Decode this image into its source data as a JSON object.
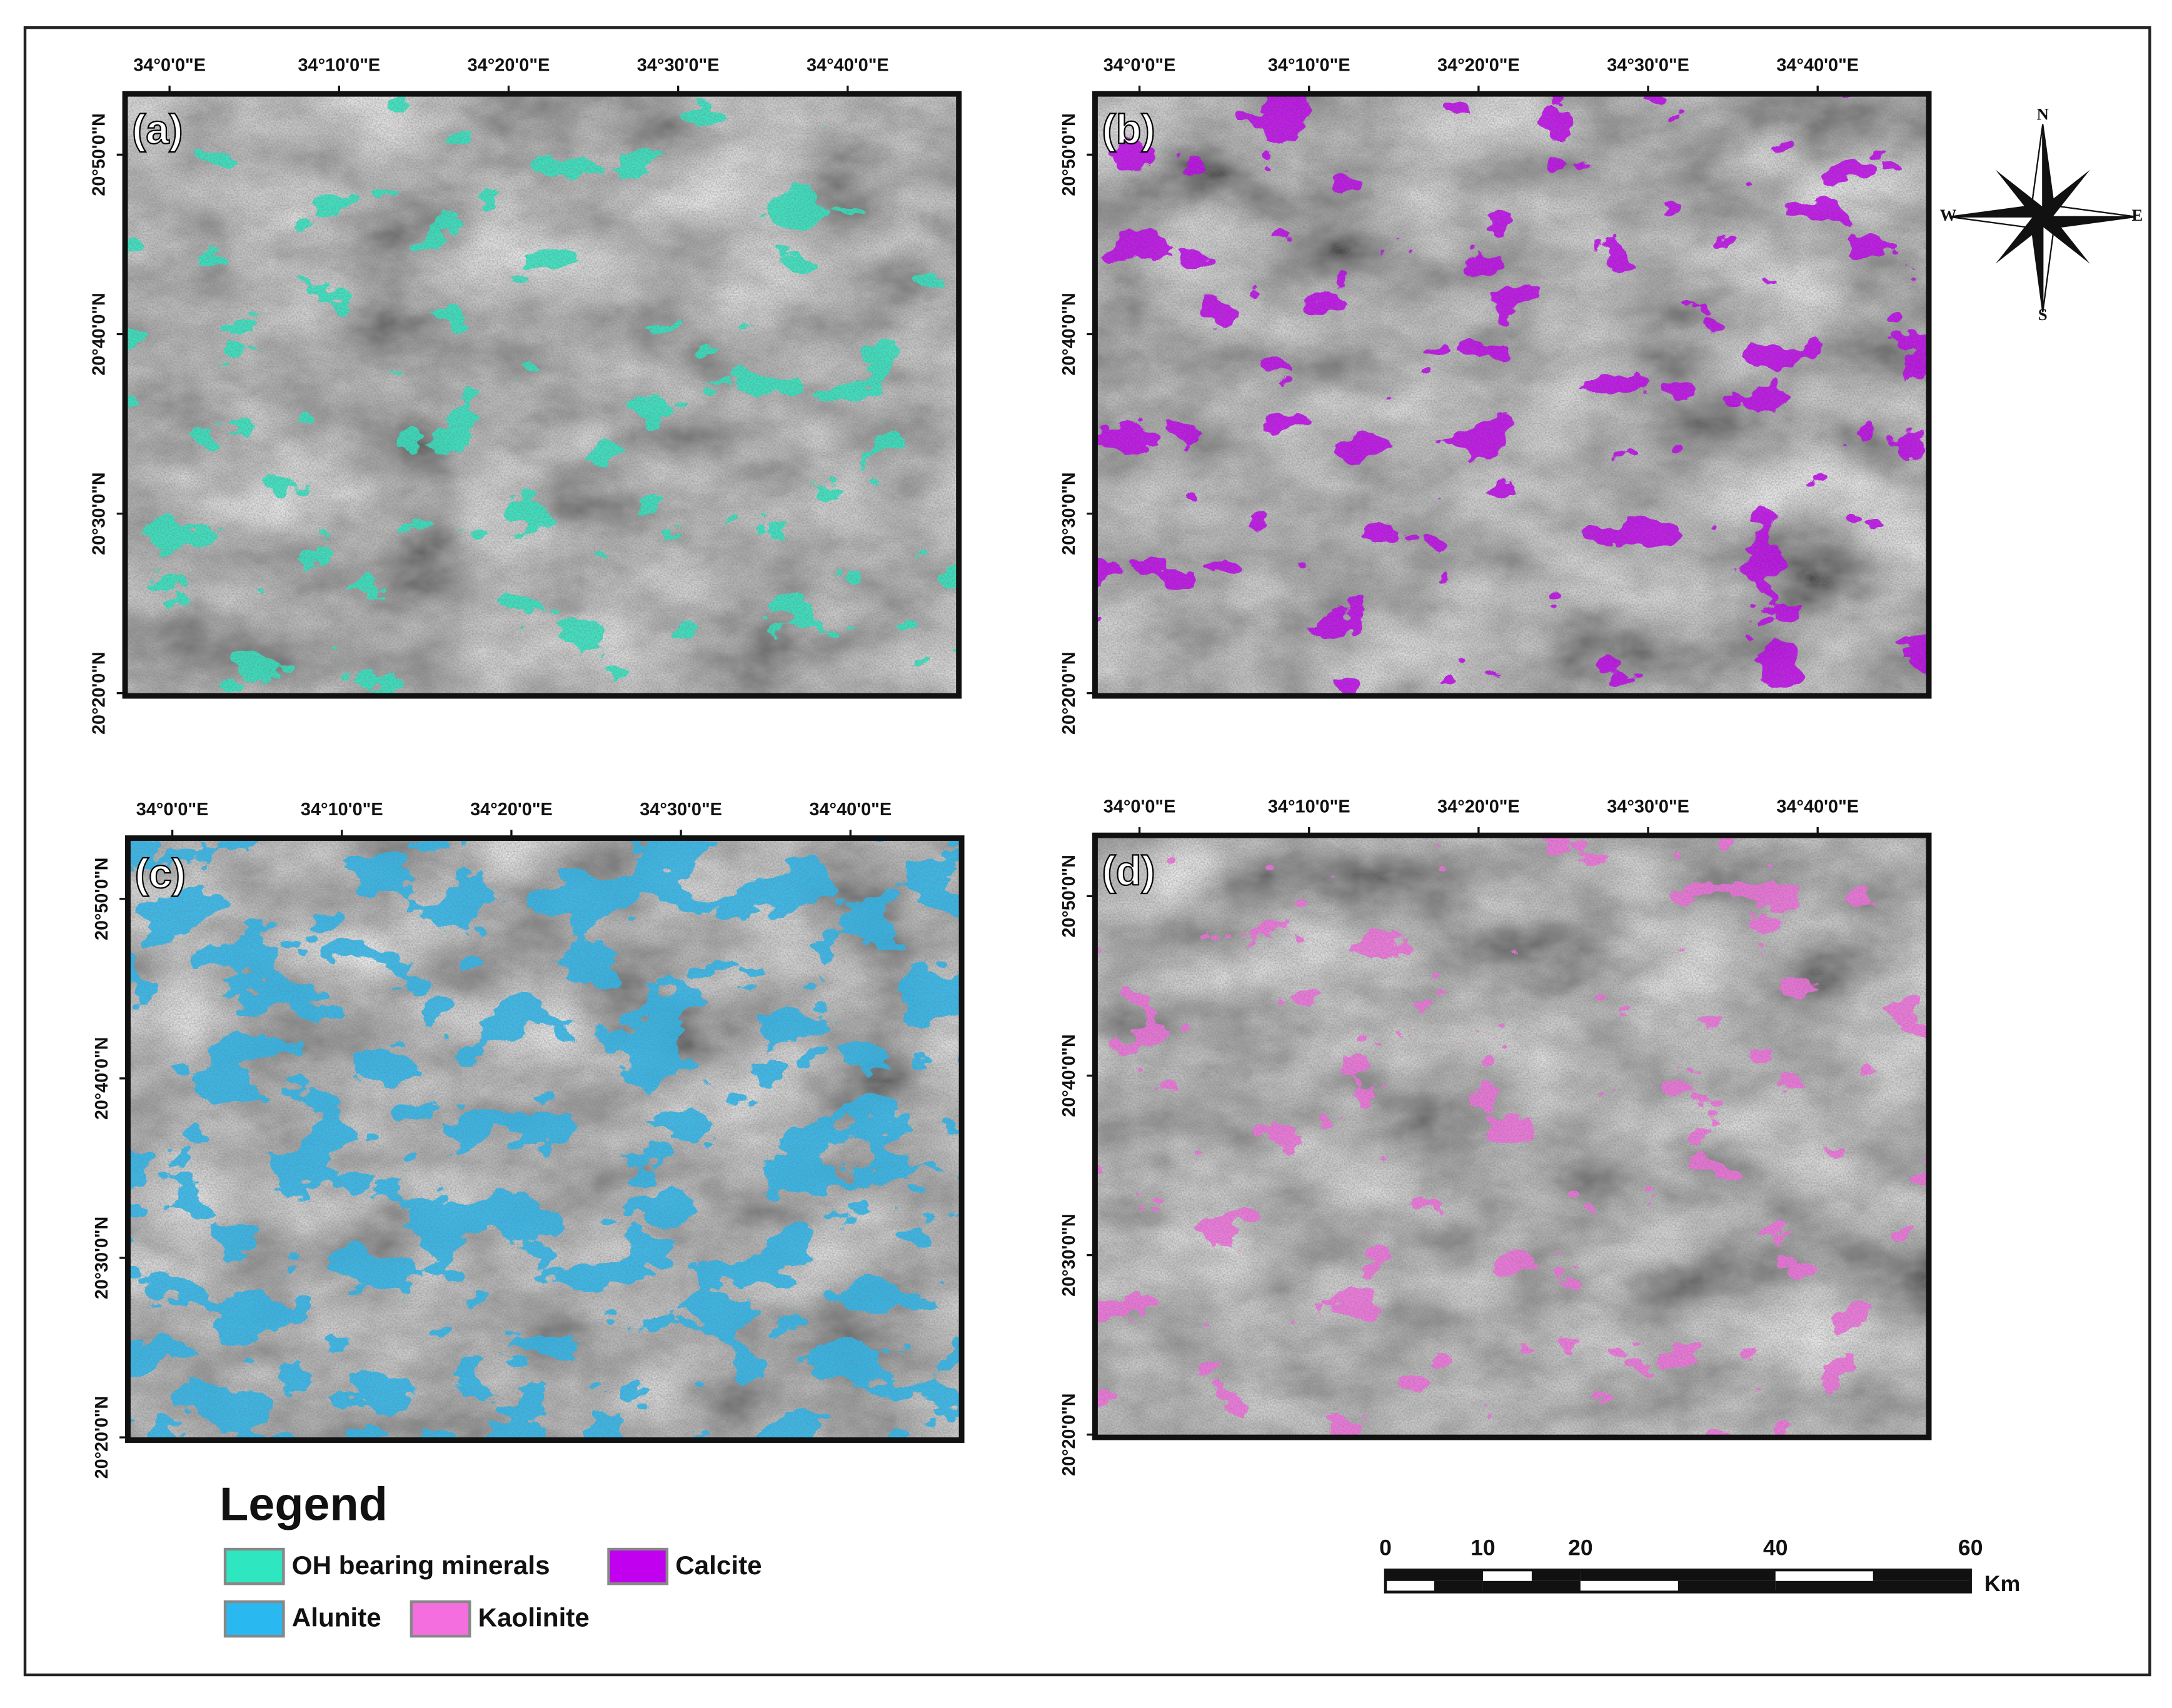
{
  "panels": [
    {
      "label": "(a)",
      "color_of": "OH bearing minerals"
    },
    {
      "label": "(b)",
      "color_of": "Calcite"
    },
    {
      "label": "(c)",
      "color_of": "Alunite"
    },
    {
      "label": "(d)",
      "color_of": "Kaolinite"
    }
  ],
  "x_ticks": [
    "34°0'0\"E",
    "34°10'0\"E",
    "34°20'0\"E",
    "34°30'0\"E",
    "34°40'0\"E"
  ],
  "y_ticks": [
    "20°50'0\"N",
    "20°40'0\"N",
    "20°30'0\"N",
    "20°20'0\"N"
  ],
  "legend": {
    "title": "Legend",
    "items": [
      {
        "name": "OH bearing minerals",
        "color": "#2ee6c0"
      },
      {
        "name": "Calcite",
        "color": "#c000ee"
      },
      {
        "name": "Alunite",
        "color": "#2ab8f0"
      },
      {
        "name": "Kaolinite",
        "color": "#f46ee0"
      }
    ]
  },
  "scale_bar": {
    "ticks": [
      0,
      10,
      20,
      40,
      60
    ],
    "unit": "Km"
  },
  "compass": {
    "north": "N",
    "south": "S",
    "east": "E",
    "west": "W"
  }
}
